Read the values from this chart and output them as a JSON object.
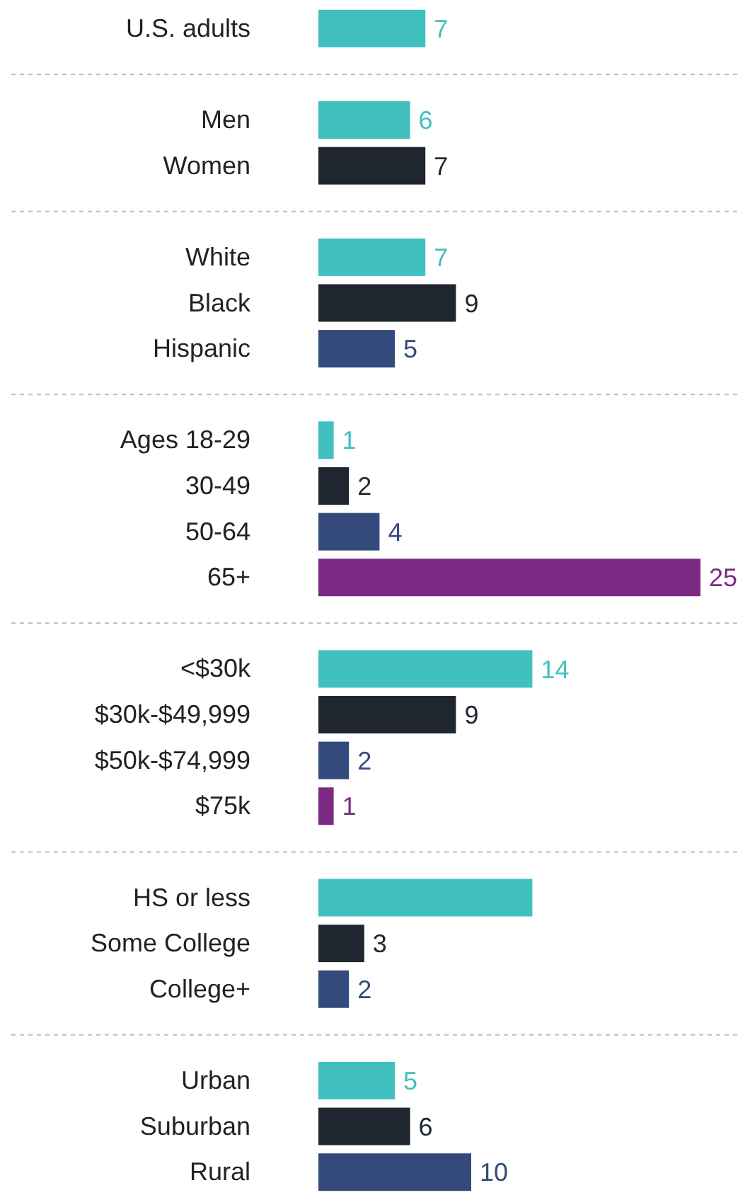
{
  "chart_data": {
    "type": "bar",
    "orientation": "horizontal",
    "categories": [
      "U.S. adults",
      null,
      "Men",
      "Women",
      null,
      "White",
      "Black",
      "Hispanic",
      null,
      "Ages 18-29",
      "30-49",
      "50-64",
      "65+",
      null,
      "<$30k",
      "$30k-$49,999",
      "$50k-$74,999",
      "$75k",
      null,
      "HS or less",
      "Some College",
      "College+",
      null,
      "Urban",
      "Suburban",
      "Rural"
    ],
    "values": [
      7,
      null,
      6,
      7,
      null,
      7,
      9,
      5,
      null,
      1,
      2,
      4,
      25,
      null,
      14,
      9,
      2,
      1,
      null,
      14,
      3,
      2,
      null,
      5,
      6,
      10
    ],
    "value_labels": [
      "7",
      null,
      "6",
      "7",
      null,
      "7",
      "9",
      "5",
      null,
      "1",
      "2",
      "4",
      "25",
      null,
      "14",
      "9",
      "2",
      "1",
      null,
      null,
      "3",
      "2",
      null,
      "5",
      "6",
      "10"
    ],
    "colors": [
      "#40c1bf",
      null,
      "#40c1bf",
      "#1f2630",
      null,
      "#40c1bf",
      "#1f2630",
      "#344a7d",
      null,
      "#40c1bf",
      "#1f2630",
      "#344a7d",
      "#7b2a83",
      null,
      "#40c1bf",
      "#1f2630",
      "#344a7d",
      "#7b2a83",
      null,
      "#40c1bf",
      "#1f2630",
      "#344a7d",
      null,
      "#40c1bf",
      "#1f2630",
      "#344a7d"
    ],
    "xlim": [
      0,
      25
    ]
  }
}
